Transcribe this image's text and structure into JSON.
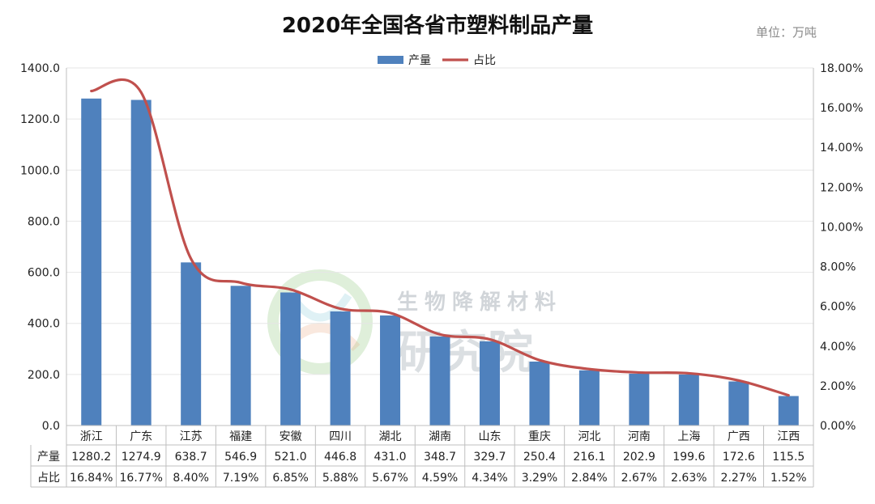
{
  "chart_data": {
    "type": "bar",
    "title": "2020年全国各省市塑料制品产量",
    "unit_label": "单位：万吨",
    "categories": [
      "浙江",
      "广东",
      "江苏",
      "福建",
      "安徽",
      "四川",
      "湖北",
      "湖南",
      "山东",
      "重庆",
      "河北",
      "河南",
      "上海",
      "广西",
      "江西"
    ],
    "series": [
      {
        "name": "产量",
        "kind": "bar",
        "axis": "left",
        "color": "#4f81bd",
        "values": [
          1280.2,
          1274.9,
          638.7,
          546.9,
          521.0,
          446.8,
          431.0,
          348.7,
          329.7,
          250.4,
          216.1,
          202.9,
          199.6,
          172.6,
          115.5
        ],
        "labels": [
          "1280.2",
          "1274.9",
          "638.7",
          "546.9",
          "521.0",
          "446.8",
          "431.0",
          "348.7",
          "329.7",
          "250.4",
          "216.1",
          "202.9",
          "199.6",
          "172.6",
          "115.5"
        ]
      },
      {
        "name": "占比",
        "kind": "line",
        "axis": "right",
        "color": "#c0504d",
        "values": [
          16.84,
          16.77,
          8.4,
          7.19,
          6.85,
          5.88,
          5.67,
          4.59,
          4.34,
          3.29,
          2.84,
          2.67,
          2.63,
          2.27,
          1.52
        ],
        "labels": [
          "16.84%",
          "16.77%",
          "8.40%",
          "7.19%",
          "6.85%",
          "5.88%",
          "5.67%",
          "4.59%",
          "4.34%",
          "3.29%",
          "2.84%",
          "2.67%",
          "2.63%",
          "2.27%",
          "1.52%"
        ]
      }
    ],
    "ylim": [
      0,
      1400
    ],
    "y_ticks": [
      "0.0",
      "200.0",
      "400.0",
      "600.0",
      "800.0",
      "1000.0",
      "1200.0",
      "1400.0"
    ],
    "y2lim": [
      0,
      18
    ],
    "y2_ticks": [
      "0.00%",
      "2.00%",
      "4.00%",
      "6.00%",
      "8.00%",
      "10.00%",
      "12.00%",
      "14.00%",
      "16.00%",
      "18.00%"
    ],
    "legend_position": "top-center",
    "grid": true,
    "data_table": true
  },
  "watermark": {
    "line1": "生物降解材料",
    "line2": "研究院"
  }
}
